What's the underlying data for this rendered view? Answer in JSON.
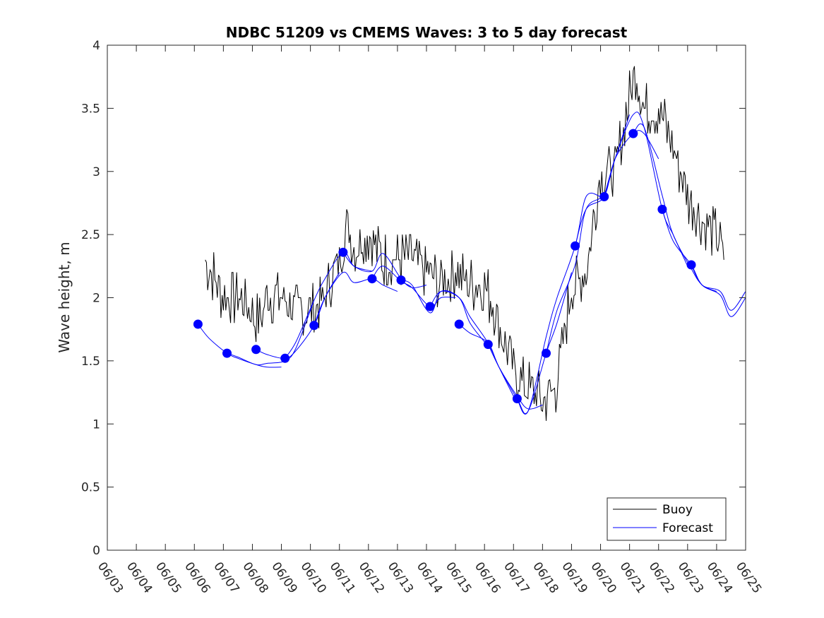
{
  "chart_data": {
    "type": "line",
    "title": "NDBC 51209 vs CMEMS Waves: 3 to 5 day forecast",
    "xlabel": "",
    "ylabel": "Wave height, m",
    "xlim": [
      "06/03",
      "06/25"
    ],
    "ylim": [
      0,
      4
    ],
    "x_ticks": [
      "06/03",
      "06/04",
      "06/05",
      "06/06",
      "06/07",
      "06/08",
      "06/09",
      "06/10",
      "06/11",
      "06/12",
      "06/13",
      "06/14",
      "06/15",
      "06/16",
      "06/17",
      "06/18",
      "06/19",
      "06/20",
      "06/21",
      "06/22",
      "06/23",
      "06/24",
      "06/25"
    ],
    "y_ticks": [
      "0",
      "0.5",
      "1",
      "1.5",
      "2",
      "2.5",
      "3",
      "3.5",
      "4"
    ],
    "grid": false,
    "legend_position": "bottom-right",
    "colors": {
      "buoy": "#000000",
      "forecast": "#0000ff"
    },
    "legend": [
      {
        "name": "Buoy",
        "color": "#000000"
      },
      {
        "name": "Forecast",
        "color": "#0000ff"
      }
    ],
    "buoy": {
      "name": "Buoy",
      "x": [
        "06/06 09:00",
        "06/07 00:00",
        "06/07 12:00",
        "06/08 00:00",
        "06/08 06:00",
        "06/08 12:00",
        "06/09 00:00",
        "06/09 12:00",
        "06/10 00:00",
        "06/10 12:00",
        "06/11 00:00",
        "06/11 06:00",
        "06/11 12:00",
        "06/12 00:00",
        "06/12 12:00",
        "06/13 00:00",
        "06/13 12:00",
        "06/14 00:00",
        "06/14 12:00",
        "06/15 00:00",
        "06/15 12:00",
        "06/16 00:00",
        "06/16 12:00",
        "06/17 00:00",
        "06/17 12:00",
        "06/18 00:00",
        "06/18 12:00",
        "06/19 00:00",
        "06/19 12:00",
        "06/20 00:00",
        "06/20 12:00",
        "06/21 00:00",
        "06/21 06:00",
        "06/21 12:00",
        "06/22 00:00",
        "06/22 12:00",
        "06/23 00:00",
        "06/23 12:00",
        "06/24 00:00",
        "06/24 06:00"
      ],
      "y": [
        2.3,
        2.0,
        2.0,
        1.9,
        1.8,
        2.0,
        2.0,
        1.9,
        1.9,
        2.0,
        2.3,
        2.6,
        2.4,
        2.5,
        2.3,
        2.3,
        2.3,
        2.2,
        2.1,
        2.2,
        2.1,
        2.1,
        1.8,
        1.4,
        1.3,
        1.2,
        1.3,
        2.1,
        2.2,
        3.0,
        3.0,
        3.6,
        3.8,
        3.5,
        3.5,
        3.2,
        2.8,
        2.6,
        2.5,
        2.3
      ]
    },
    "series": [
      {
        "name": "",
        "x": [
          "06/06 03:00",
          "06/06 12:00",
          "06/07 03:00",
          "06/07 12:00",
          "06/08 03:00",
          "06/08 12:00",
          "06/09 00:00"
        ],
        "y": [
          1.79,
          1.68,
          1.56,
          1.52,
          1.47,
          1.45,
          1.45
        ]
      },
      {
        "name": "",
        "x": [
          "06/07 03:00",
          "06/07 12:00",
          "06/08 03:00",
          "06/08 12:00",
          "06/09 03:00",
          "06/09 12:00",
          "06/10 03:00"
        ],
        "y": [
          1.56,
          1.53,
          1.47,
          1.48,
          1.5,
          1.6,
          1.98
        ]
      },
      {
        "name": "",
        "x": [
          "06/08 03:00",
          "06/08 12:00",
          "06/09 03:00",
          "06/09 12:00",
          "06/10 03:00",
          "06/10 12:00",
          "06/11 00:00"
        ],
        "y": [
          1.59,
          1.55,
          1.52,
          1.58,
          1.78,
          2.0,
          2.2
        ]
      },
      {
        "name": "",
        "x": [
          "06/09 03:00",
          "06/09 12:00",
          "06/10 03:00",
          "06/10 12:00",
          "06/11 03:00",
          "06/11 12:00",
          "06/12 03:00"
        ],
        "y": [
          1.52,
          1.65,
          1.98,
          2.15,
          2.36,
          2.25,
          2.21
        ]
      },
      {
        "name": "",
        "x": [
          "06/10 03:00",
          "06/10 12:00",
          "06/11 03:00",
          "06/11 12:00",
          "06/12 03:00",
          "06/12 12:00",
          "06/13 00:00"
        ],
        "y": [
          1.78,
          2.0,
          2.2,
          2.12,
          2.15,
          2.1,
          2.05
        ]
      },
      {
        "name": "",
        "x": [
          "06/11 03:00",
          "06/11 12:00",
          "06/12 03:00",
          "06/12 12:00",
          "06/13 03:00",
          "06/13 12:00",
          "06/14 00:00"
        ],
        "y": [
          2.36,
          2.25,
          2.21,
          2.35,
          2.15,
          2.08,
          2.1
        ]
      },
      {
        "name": "",
        "x": [
          "06/12 03:00",
          "06/12 12:00",
          "06/13 03:00",
          "06/13 12:00",
          "06/14 03:00",
          "06/14 12:00",
          "06/15 00:00"
        ],
        "y": [
          2.15,
          2.25,
          2.13,
          2.08,
          1.93,
          2.0,
          2.0
        ]
      },
      {
        "name": "",
        "x": [
          "06/13 03:00",
          "06/13 12:00",
          "06/14 03:00",
          "06/14 12:00",
          "06/15 03:00",
          "06/15 12:00",
          "06/16 00:00"
        ],
        "y": [
          2.14,
          2.1,
          1.88,
          2.05,
          2.0,
          1.8,
          1.65
        ]
      },
      {
        "name": "",
        "x": [
          "06/14 03:00",
          "06/14 12:00",
          "06/15 03:00",
          "06/15 12:00",
          "06/16 03:00",
          "06/16 12:00",
          "06/17 00:00"
        ],
        "y": [
          1.93,
          2.05,
          2.0,
          1.85,
          1.64,
          1.45,
          1.22
        ]
      },
      {
        "name": "",
        "x": [
          "06/15 03:00",
          "06/15 12:00",
          "06/16 03:00",
          "06/16 12:00",
          "06/17 03:00",
          "06/17 12:00",
          "06/18 00:00"
        ],
        "y": [
          1.79,
          1.72,
          1.64,
          1.45,
          1.22,
          1.12,
          1.15
        ]
      },
      {
        "name": "",
        "x": [
          "06/16 03:00",
          "06/16 12:00",
          "06/17 03:00",
          "06/17 12:00",
          "06/18 03:00",
          "06/18 12:00",
          "06/19 00:00"
        ],
        "y": [
          1.63,
          1.45,
          1.2,
          1.1,
          1.56,
          1.8,
          2.2
        ]
      },
      {
        "name": "",
        "x": [
          "06/17 03:00",
          "06/17 12:00",
          "06/18 03:00",
          "06/18 12:00",
          "06/19 03:00",
          "06/19 12:00",
          "06/20 00:00"
        ],
        "y": [
          1.2,
          1.1,
          1.69,
          2.0,
          2.41,
          2.8,
          2.8
        ]
      },
      {
        "name": "",
        "x": [
          "06/18 03:00",
          "06/18 12:00",
          "06/19 03:00",
          "06/19 12:00",
          "06/20 03:00",
          "06/20 12:00",
          "06/21 00:00"
        ],
        "y": [
          1.56,
          1.9,
          2.26,
          2.7,
          2.82,
          3.1,
          3.45
        ]
      },
      {
        "name": "",
        "x": [
          "06/19 03:00",
          "06/19 12:00",
          "06/20 03:00",
          "06/20 12:00",
          "06/21 03:00",
          "06/21 12:00",
          "06/22 00:00"
        ],
        "y": [
          2.41,
          2.7,
          2.8,
          3.1,
          3.3,
          3.3,
          3.1
        ]
      },
      {
        "name": "",
        "x": [
          "06/20 03:00",
          "06/20 12:00",
          "06/21 03:00",
          "06/21 12:00",
          "06/22 03:00",
          "06/22 12:00",
          "06/23 00:00"
        ],
        "y": [
          2.8,
          3.1,
          3.45,
          3.35,
          2.7,
          2.5,
          2.25
        ]
      },
      {
        "name": "",
        "x": [
          "06/21 03:00",
          "06/21 12:00",
          "06/22 03:00",
          "06/22 12:00",
          "06/23 03:00",
          "06/23 12:00",
          "06/24 00:00"
        ],
        "y": [
          3.3,
          3.35,
          2.81,
          2.5,
          2.23,
          2.1,
          2.05
        ]
      },
      {
        "name": "",
        "x": [
          "06/22 03:00",
          "06/22 12:00",
          "06/23 03:00",
          "06/23 12:00",
          "06/24 03:00",
          "06/24 12:00",
          "06/25 00:00"
        ],
        "y": [
          2.7,
          2.45,
          2.26,
          2.1,
          2.02,
          1.85,
          2.0
        ]
      },
      {
        "name": "",
        "x": [
          "06/23 03:00",
          "06/23 12:00",
          "06/24 03:00",
          "06/24 12:00",
          "06/25 00:00"
        ],
        "y": [
          2.26,
          2.1,
          2.05,
          1.9,
          2.05
        ]
      }
    ]
  }
}
